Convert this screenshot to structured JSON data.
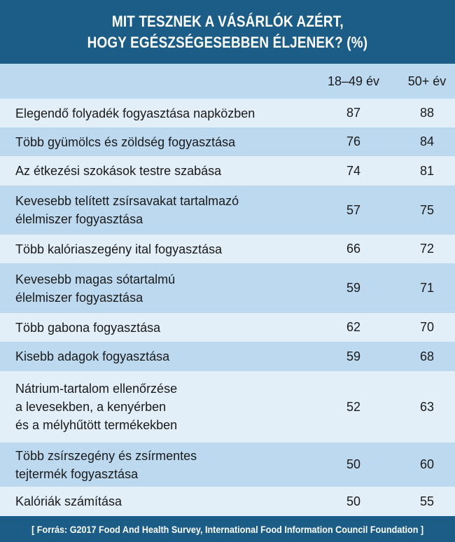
{
  "chart_data": {
    "type": "table",
    "title_lines": [
      "MIT TESZNEK A VÁSÁRLÓK AZÉRT,",
      "HOGY EGÉSZSÉGESEBBEN ÉLJENEK? (%)"
    ],
    "columns": [
      "18–49 év",
      "50+ év"
    ],
    "rows": [
      {
        "label": [
          "Elegendő folyadék fogyasztása napközben"
        ],
        "values": [
          87,
          88
        ]
      },
      {
        "label": [
          "Több gyümölcs és zöldség fogyasztása"
        ],
        "values": [
          76,
          84
        ]
      },
      {
        "label": [
          "Az étkezési szokások testre szabása"
        ],
        "values": [
          74,
          81
        ]
      },
      {
        "label": [
          "Kevesebb telített zsírsavakat tartalmazó",
          "élelmiszer fogyasztása"
        ],
        "values": [
          57,
          75
        ]
      },
      {
        "label": [
          "Több kalóriaszegény ital fogyasztása"
        ],
        "values": [
          66,
          72
        ]
      },
      {
        "label": [
          "Kevesebb magas sótartalmú",
          "élelmiszer fogyasztása"
        ],
        "values": [
          59,
          71
        ]
      },
      {
        "label": [
          "Több gabona fogyasztása"
        ],
        "values": [
          62,
          70
        ]
      },
      {
        "label": [
          "Kisebb adagok fogyasztása"
        ],
        "values": [
          59,
          68
        ]
      },
      {
        "label": [
          "Nátrium-tartalom ellenőrzése",
          "a levesekben, a kenyérben",
          "és a mélyhűtött termékekben"
        ],
        "values": [
          52,
          63
        ]
      },
      {
        "label": [
          "Több zsírszegény és zsírmentes",
          "tejtermék fogyasztása"
        ],
        "values": [
          50,
          60
        ]
      },
      {
        "label": [
          "Kalóriák számítása"
        ],
        "values": [
          50,
          55
        ]
      }
    ],
    "source": "[ Forrás: G2017 Food And Health Survey, International Food Information Council Foundation ]"
  },
  "colors": {
    "header_bg": "#1b5d87",
    "row_light": "#e2eef8",
    "row_dark": "#bcd9ef"
  }
}
